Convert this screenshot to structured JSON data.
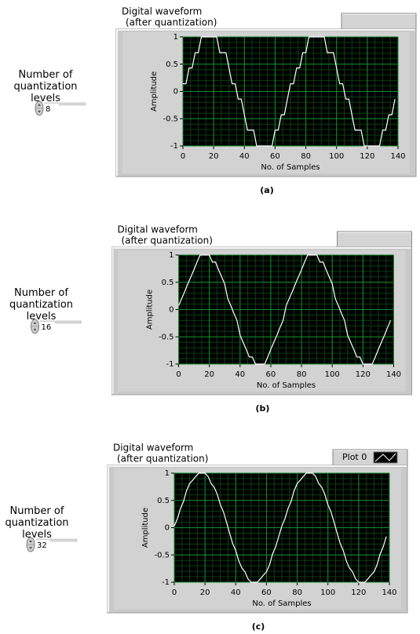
{
  "chart_data": [
    {
      "type": "line",
      "title": "Digital waveform",
      "subtitle": "(after quantization)",
      "xlabel": "No. of Samples",
      "ylabel": "Amplitude",
      "control": {
        "label": "Number of quantization levels",
        "value": 8
      },
      "caption": "(a)",
      "xlim": [
        0,
        140
      ],
      "xticks": [
        0,
        20,
        40,
        60,
        80,
        100,
        120,
        140
      ],
      "ylim": [
        -1,
        1
      ],
      "yticks": [
        -1,
        -0.5,
        0,
        0.5,
        1
      ],
      "grid": true,
      "legend": false,
      "x": [
        0,
        2,
        4,
        6,
        8,
        10,
        12,
        14,
        16,
        18,
        20,
        22,
        24,
        26,
        28,
        30,
        32,
        34,
        36,
        38,
        40,
        42,
        44,
        46,
        48,
        50,
        52,
        54,
        56,
        58,
        60,
        62,
        64,
        66,
        68,
        70,
        72,
        74,
        76,
        78,
        80,
        82,
        84,
        86,
        88,
        90,
        92,
        94,
        96,
        98,
        100,
        102,
        104,
        106,
        108,
        110,
        112,
        114,
        116,
        118,
        120,
        122,
        124,
        126,
        128,
        130,
        132,
        134,
        136,
        138
      ],
      "series": [
        {
          "color": "#ffffff",
          "values": [
            0.14,
            0.14,
            0.43,
            0.43,
            0.71,
            0.71,
            1,
            1,
            1,
            1,
            1,
            1,
            0.71,
            0.71,
            0.71,
            0.43,
            0.14,
            0.14,
            -0.14,
            -0.14,
            -0.43,
            -0.71,
            -0.71,
            -0.71,
            -1,
            -1,
            -1,
            -1,
            -1,
            -1,
            -0.71,
            -0.71,
            -0.43,
            -0.43,
            -0.14,
            0.14,
            0.14,
            0.43,
            0.43,
            0.71,
            0.71,
            1,
            1,
            1,
            1,
            1,
            1,
            0.71,
            0.71,
            0.71,
            0.43,
            0.14,
            0.14,
            -0.14,
            -0.14,
            -0.43,
            -0.71,
            -0.71,
            -0.71,
            -1,
            -1,
            -1,
            -1,
            -1,
            -1,
            -0.71,
            -0.71,
            -0.43,
            -0.43,
            -0.14
          ]
        }
      ]
    },
    {
      "type": "line",
      "title": "Digital waveform",
      "subtitle": "(after quantization)",
      "xlabel": "No. of Samples",
      "ylabel": "Amplitude",
      "control": {
        "label": "Number of quantization levels",
        "value": 16
      },
      "caption": "(b)",
      "xlim": [
        0,
        140
      ],
      "xticks": [
        0,
        20,
        40,
        60,
        80,
        100,
        120,
        140
      ],
      "ylim": [
        -1,
        1
      ],
      "yticks": [
        -1,
        -0.5,
        0,
        0.5,
        1
      ],
      "grid": true,
      "legend": false,
      "x": [
        0,
        2,
        4,
        6,
        8,
        10,
        12,
        14,
        16,
        18,
        20,
        22,
        24,
        26,
        28,
        30,
        32,
        34,
        36,
        38,
        40,
        42,
        44,
        46,
        48,
        50,
        52,
        54,
        56,
        58,
        60,
        62,
        64,
        66,
        68,
        70,
        72,
        74,
        76,
        78,
        80,
        82,
        84,
        86,
        88,
        90,
        92,
        94,
        96,
        98,
        100,
        102,
        104,
        106,
        108,
        110,
        112,
        114,
        116,
        118,
        120,
        122,
        124,
        126,
        128,
        130,
        132,
        134,
        136,
        138
      ],
      "series": [
        {
          "color": "#ffffff",
          "values": [
            0.07,
            0.2,
            0.33,
            0.47,
            0.6,
            0.73,
            0.87,
            1,
            1,
            1,
            1,
            0.87,
            0.87,
            0.73,
            0.6,
            0.47,
            0.2,
            0.07,
            -0.07,
            -0.2,
            -0.47,
            -0.6,
            -0.73,
            -0.87,
            -0.87,
            -1,
            -1,
            -1,
            -1,
            -0.87,
            -0.73,
            -0.6,
            -0.47,
            -0.33,
            -0.2,
            0.07,
            0.2,
            0.33,
            0.47,
            0.6,
            0.73,
            0.87,
            1,
            1,
            1,
            1,
            0.87,
            0.87,
            0.73,
            0.6,
            0.47,
            0.2,
            0.07,
            -0.07,
            -0.2,
            -0.47,
            -0.6,
            -0.73,
            -0.87,
            -0.87,
            -1,
            -1,
            -1,
            -1,
            -0.87,
            -0.73,
            -0.6,
            -0.47,
            -0.33,
            -0.2
          ]
        }
      ]
    },
    {
      "type": "line",
      "title": "Digital waveform",
      "subtitle": "(after quantization)",
      "xlabel": "No. of Samples",
      "ylabel": "Amplitude",
      "control": {
        "label": "Number of quantization levels",
        "value": 32
      },
      "caption": "(c)",
      "xlim": [
        0,
        140
      ],
      "xticks": [
        0,
        20,
        40,
        60,
        80,
        100,
        120,
        140
      ],
      "ylim": [
        -1,
        1
      ],
      "yticks": [
        -1,
        -0.5,
        0,
        0.5,
        1
      ],
      "grid": true,
      "legend": true,
      "x": [
        0,
        2,
        4,
        6,
        8,
        10,
        12,
        14,
        16,
        18,
        20,
        22,
        24,
        26,
        28,
        30,
        32,
        34,
        36,
        38,
        40,
        42,
        44,
        46,
        48,
        50,
        52,
        54,
        56,
        58,
        60,
        62,
        64,
        66,
        68,
        70,
        72,
        74,
        76,
        78,
        80,
        82,
        84,
        86,
        88,
        90,
        92,
        94,
        96,
        98,
        100,
        102,
        104,
        106,
        108,
        110,
        112,
        114,
        116,
        118,
        120,
        122,
        124,
        126,
        128,
        130,
        132,
        134,
        136,
        138
      ],
      "series": [
        {
          "name": "Plot 0",
          "color": "#ffffff",
          "values": [
            0.03,
            0.16,
            0.35,
            0.48,
            0.68,
            0.81,
            0.87,
            0.94,
            1,
            1,
            1,
            0.94,
            0.81,
            0.74,
            0.61,
            0.42,
            0.29,
            0.1,
            -0.1,
            -0.29,
            -0.42,
            -0.61,
            -0.74,
            -0.81,
            -0.94,
            -1,
            -1,
            -1,
            -0.94,
            -0.87,
            -0.81,
            -0.68,
            -0.48,
            -0.35,
            -0.16,
            0.03,
            0.16,
            0.35,
            0.48,
            0.68,
            0.81,
            0.87,
            0.94,
            1,
            1,
            1,
            0.94,
            0.81,
            0.74,
            0.61,
            0.42,
            0.29,
            0.1,
            -0.1,
            -0.29,
            -0.42,
            -0.61,
            -0.74,
            -0.81,
            -0.94,
            -1,
            -1,
            -1,
            -0.94,
            -0.87,
            -0.81,
            -0.68,
            -0.48,
            -0.35,
            -0.16
          ]
        }
      ]
    }
  ]
}
